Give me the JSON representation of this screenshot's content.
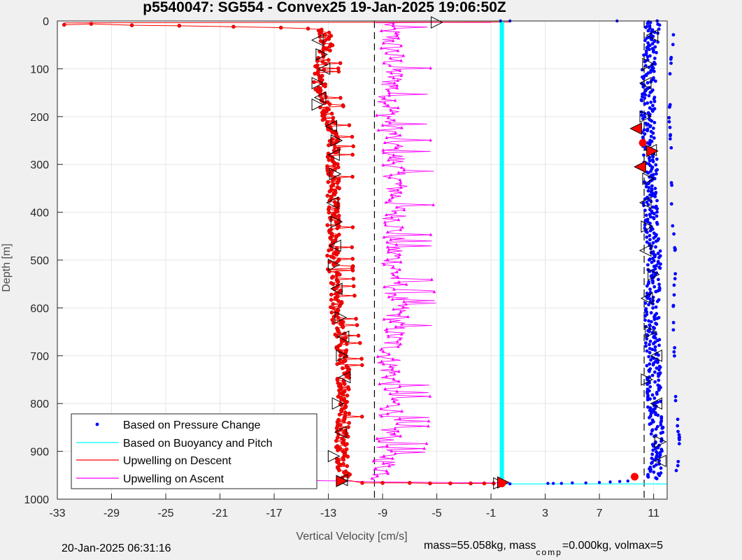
{
  "title": "p5540047: SG554 - Convex25 19-Jan-2025 19:06:50Z",
  "footer": {
    "timestamp": "20-Jan-2025 06:31:16",
    "mass_text": "mass=55.058kg, mass",
    "comp_sub": "comp",
    "comp_text": "=0.000kg, volmax=5"
  },
  "chart_data": {
    "type": "scatter",
    "title": "p5540047: SG554 - Convex25 19-Jan-2025 19:06:50Z",
    "xlabel": "Vertical Velocity [cm/s]",
    "ylabel": "Depth [m]",
    "xlim": [
      -33,
      12
    ],
    "ylim": [
      1000,
      0
    ],
    "y_reversed": true,
    "grid": true,
    "legend_position": "bottom-left",
    "xticks": [
      -33,
      -29,
      -25,
      -21,
      -17,
      -13,
      -9,
      -5,
      -1,
      3,
      7,
      11
    ],
    "yticks": [
      0,
      100,
      200,
      300,
      400,
      500,
      600,
      700,
      800,
      900,
      1000
    ],
    "reference_lines": [
      {
        "x": -9.6,
        "style": "dashed",
        "color": "#000000"
      },
      {
        "x": 10.3,
        "style": "dashed",
        "color": "#000000"
      }
    ],
    "series": [
      {
        "name": "Based on Pressure Change",
        "style": "dots",
        "color": "#0000ff",
        "profile": [
          [
            0,
            11
          ],
          [
            100,
            10.7
          ],
          [
            200,
            10.6
          ],
          [
            300,
            10.8
          ],
          [
            400,
            10.8
          ],
          [
            500,
            11.1
          ],
          [
            600,
            10.9
          ],
          [
            700,
            11.0
          ],
          [
            800,
            11.1
          ],
          [
            900,
            11.4
          ],
          [
            960,
            11.0
          ]
        ],
        "spread": 0.8
      },
      {
        "name": "Based on Buoyancy and Pitch",
        "style": "line",
        "color": "#00ffff",
        "x": [
          -0.2,
          -0.2,
          -0.2,
          12
        ],
        "y": [
          0,
          965,
          968,
          968
        ]
      },
      {
        "name": "Upwelling on Descent",
        "style": "line-dots",
        "color": "#ff0000",
        "profile": [
          [
            5,
            -13.5
          ],
          [
            50,
            -13.0
          ],
          [
            100,
            -13.6
          ],
          [
            150,
            -13.6
          ],
          [
            200,
            -13.0
          ],
          [
            250,
            -12.5
          ],
          [
            300,
            -12.6
          ],
          [
            400,
            -12.6
          ],
          [
            500,
            -12.6
          ],
          [
            600,
            -12.4
          ],
          [
            700,
            -11.9
          ],
          [
            800,
            -11.8
          ],
          [
            900,
            -12.0
          ],
          [
            960,
            -11.7
          ]
        ],
        "spread": 0.7,
        "surface_x": [
          -32.5,
          -30.5,
          -27.5,
          -24,
          -20,
          -16.5,
          -14.5,
          -13.5
        ],
        "surface_y": [
          8,
          6,
          9,
          10,
          12,
          14,
          16,
          18
        ],
        "bottom_x": [
          -10.5,
          -9,
          -7,
          -5.5,
          -4,
          -2.5,
          -1.5,
          -0.8
        ],
        "bottom_y": [
          966,
          966,
          966,
          967,
          967,
          967,
          967,
          967
        ]
      },
      {
        "name": "Upwelling on Ascent",
        "style": "line-triangles",
        "color": "#ff00ff",
        "profile": [
          [
            5,
            -8.5
          ],
          [
            100,
            -8.2
          ],
          [
            200,
            -8.5
          ],
          [
            300,
            -8.0
          ],
          [
            400,
            -8.0
          ],
          [
            500,
            -8.2
          ],
          [
            600,
            -7.8
          ],
          [
            700,
            -8.5
          ],
          [
            800,
            -8.2
          ],
          [
            900,
            -8.6
          ],
          [
            960,
            -9.0
          ]
        ],
        "spread": 1.4
      }
    ],
    "triangle_markers": {
      "descent": [
        [
          -13.8,
          40
        ],
        [
          -13.5,
          70
        ],
        [
          -13.3,
          100
        ],
        [
          -13.8,
          130
        ],
        [
          -13.6,
          160
        ],
        [
          -13.8,
          175
        ],
        [
          -12.8,
          220
        ],
        [
          -12.4,
          250
        ],
        [
          -12.6,
          280
        ],
        [
          -12.5,
          320
        ],
        [
          -12.7,
          380
        ],
        [
          -12.4,
          420
        ],
        [
          -12.5,
          470
        ],
        [
          -12.6,
          510
        ],
        [
          -12.4,
          560
        ],
        [
          -12.1,
          620
        ],
        [
          -11.9,
          660
        ],
        [
          -12.0,
          700
        ],
        [
          -11.8,
          745
        ],
        [
          -12.3,
          800
        ],
        [
          -12.1,
          860
        ],
        [
          -12.6,
          910
        ],
        [
          -12.0,
          960
        ]
      ],
      "ascent": [
        [
          -5.0,
          3
        ],
        [
          10.9,
          30
        ],
        [
          10.6,
          90
        ],
        [
          10.4,
          130
        ],
        [
          10.4,
          200
        ],
        [
          10.8,
          270
        ],
        [
          10.6,
          330
        ],
        [
          10.4,
          380
        ],
        [
          10.5,
          430
        ],
        [
          10.4,
          480
        ],
        [
          11.0,
          530
        ],
        [
          10.5,
          580
        ],
        [
          10.8,
          650
        ],
        [
          11.2,
          700
        ],
        [
          10.5,
          750
        ],
        [
          11.2,
          800
        ],
        [
          11.5,
          880
        ],
        [
          11.5,
          920
        ],
        [
          -0.4,
          967
        ]
      ],
      "red_filled": [
        [
          9.7,
          225
        ],
        [
          10.9,
          272
        ],
        [
          10.0,
          305
        ],
        [
          -0.1,
          965
        ]
      ]
    },
    "red_circles": [
      [
        10.2,
        255
      ],
      [
        9.6,
        953
      ],
      [
        -0.2,
        967
      ]
    ],
    "outlier_points": [
      [
        8.3,
        0
      ],
      [
        -0.3,
        0
      ],
      [
        0.4,
        0
      ]
    ]
  }
}
